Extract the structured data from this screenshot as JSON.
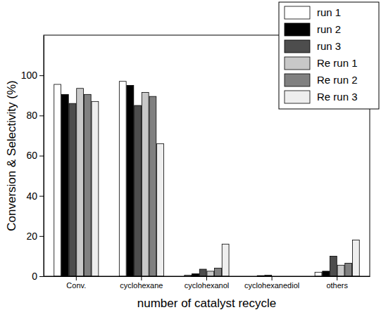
{
  "chart_data": {
    "type": "bar",
    "x_label": "number of catalyst recycle",
    "y_label": "Conversion & Selectivity (%)",
    "categories": [
      "Conv.",
      "cyclohexane",
      "cyclohexanol",
      "cyclohexanediol",
      "others"
    ],
    "series": [
      {
        "name": "run 1",
        "color": "#ffffff",
        "values": [
          95.5,
          97,
          0.5,
          0,
          2
        ]
      },
      {
        "name": "run 2",
        "color": "#000000",
        "values": [
          90.5,
          95,
          1.2,
          0.3,
          2.5
        ]
      },
      {
        "name": "run 3",
        "color": "#4d4d4d",
        "values": [
          86,
          85,
          3.5,
          0.5,
          10
        ]
      },
      {
        "name": "Re run 1",
        "color": "#c8c8c8",
        "values": [
          93.5,
          91.5,
          2.5,
          0,
          5.5
        ]
      },
      {
        "name": "Re run 2",
        "color": "#808080",
        "values": [
          90.5,
          89.5,
          4,
          0,
          6.5
        ]
      },
      {
        "name": "Re run 3",
        "color": "#eeeeee",
        "values": [
          87,
          66,
          16,
          0,
          18
        ]
      }
    ],
    "ylim": [
      0,
      120
    ],
    "yticks": [
      0,
      20,
      40,
      60,
      80,
      100
    ],
    "legend": "top-right",
    "grid": false
  }
}
